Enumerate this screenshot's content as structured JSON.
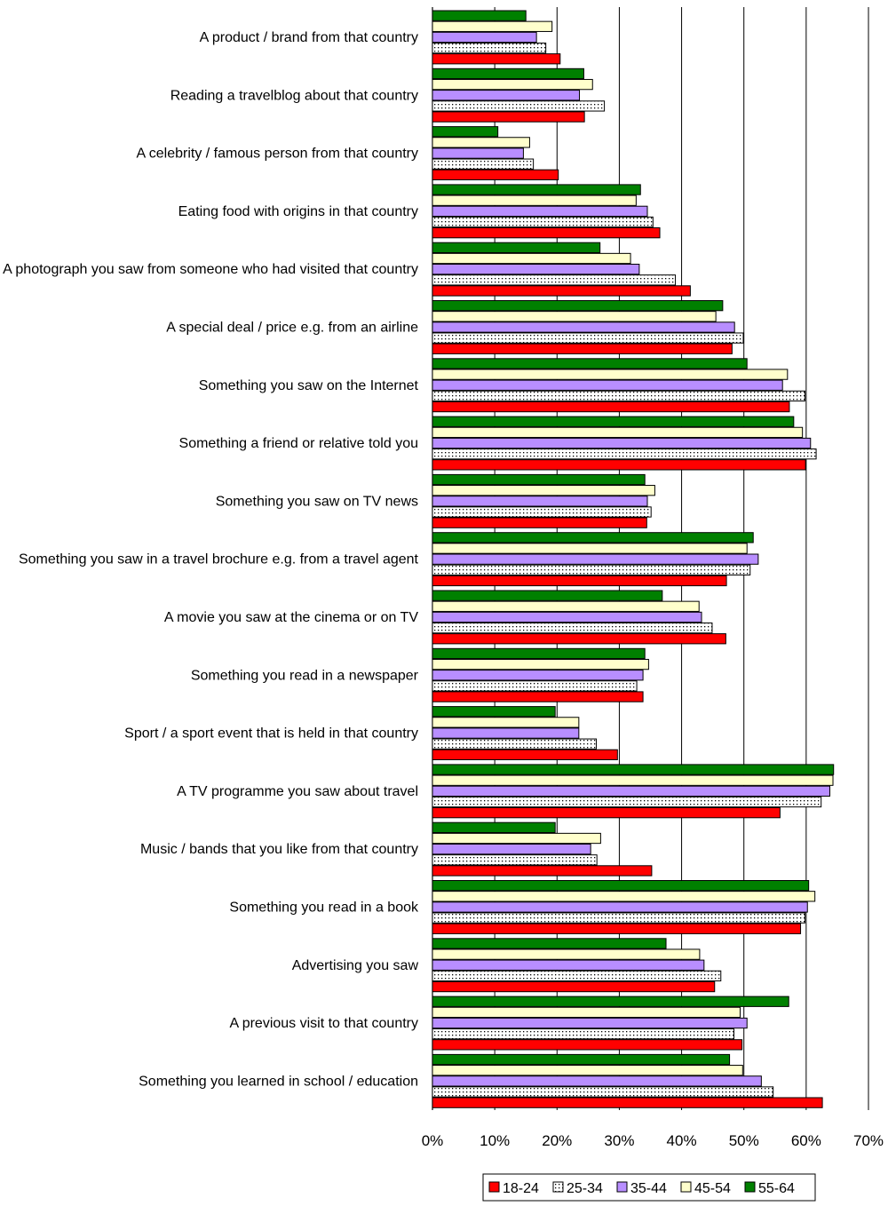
{
  "chart_data": {
    "type": "bar",
    "orientation": "horizontal",
    "title": "",
    "xlabel": "",
    "ylabel": "",
    "xlim": [
      0,
      70
    ],
    "x_ticks": [
      "0%",
      "10%",
      "20%",
      "30%",
      "40%",
      "50%",
      "60%",
      "70%"
    ],
    "grid": "vertical",
    "legend_position": "bottom-right",
    "categories": [
      "A product  / brand from that country",
      "Reading a travelblog about that country",
      "A celebrity / famous person from that country",
      "Eating food with origins in that country",
      "A photograph you saw from someone who had visited that country",
      "A special deal / price e.g. from an airline",
      "Something you saw on the Internet",
      "Something a friend or relative told you",
      "Something you saw on TV news",
      "Something you saw in a travel brochure e.g. from a travel agent",
      "A movie you saw at the cinema or on TV",
      "Something you read in a newspaper",
      "Sport / a sport event that is held in that country",
      "A TV programme you saw about travel",
      "Music / bands that you like from that country",
      "Something you read in a book",
      "Advertising you saw",
      "A previous visit to that country",
      "Something you learned in school / education"
    ],
    "series": [
      {
        "name": "55-64",
        "color": "#008000",
        "pattern": "solid",
        "values": [
          15,
          24.3,
          10.5,
          33.4,
          26.9,
          46.6,
          50.5,
          58,
          34.1,
          51.5,
          36.9,
          34.1,
          19.7,
          64.4,
          19.7,
          60.4,
          37.5,
          57.2,
          47.7
        ]
      },
      {
        "name": "45-54",
        "color": "#FFFFCC",
        "pattern": "solid",
        "values": [
          19.2,
          25.7,
          15.6,
          32.7,
          31.8,
          45.5,
          57,
          59.4,
          35.7,
          50.5,
          42.8,
          34.7,
          23.5,
          64.3,
          27,
          61.4,
          42.9,
          49.4,
          49.8
        ]
      },
      {
        "name": "35-44",
        "color": "#B88EFF",
        "pattern": "solid",
        "values": [
          16.7,
          23.6,
          14.6,
          34.5,
          33.2,
          48.5,
          56.2,
          60.7,
          34.5,
          52.3,
          43.2,
          33.8,
          23.5,
          63.8,
          25.4,
          60.2,
          43.6,
          50.5,
          52.8
        ]
      },
      {
        "name": "25-34",
        "color": "#FFFFFF",
        "pattern": "dotted",
        "values": [
          18.2,
          27.6,
          16.2,
          35.4,
          39,
          49.9,
          59.8,
          61.6,
          35.1,
          51,
          44.9,
          32.8,
          26.3,
          62.4,
          26.4,
          59.8,
          46.3,
          48.4,
          54.7
        ]
      },
      {
        "name": "18-24",
        "color": "#FF0000",
        "pattern": "solid",
        "values": [
          20.5,
          24.4,
          20.2,
          36.5,
          41.4,
          48.1,
          57.3,
          59.9,
          34.4,
          47.2,
          47.1,
          33.8,
          29.7,
          55.8,
          35.2,
          59.1,
          45.3,
          49.7,
          62.6
        ]
      }
    ],
    "legend_order": [
      "18-24",
      "25-34",
      "35-44",
      "45-54",
      "55-64"
    ]
  }
}
